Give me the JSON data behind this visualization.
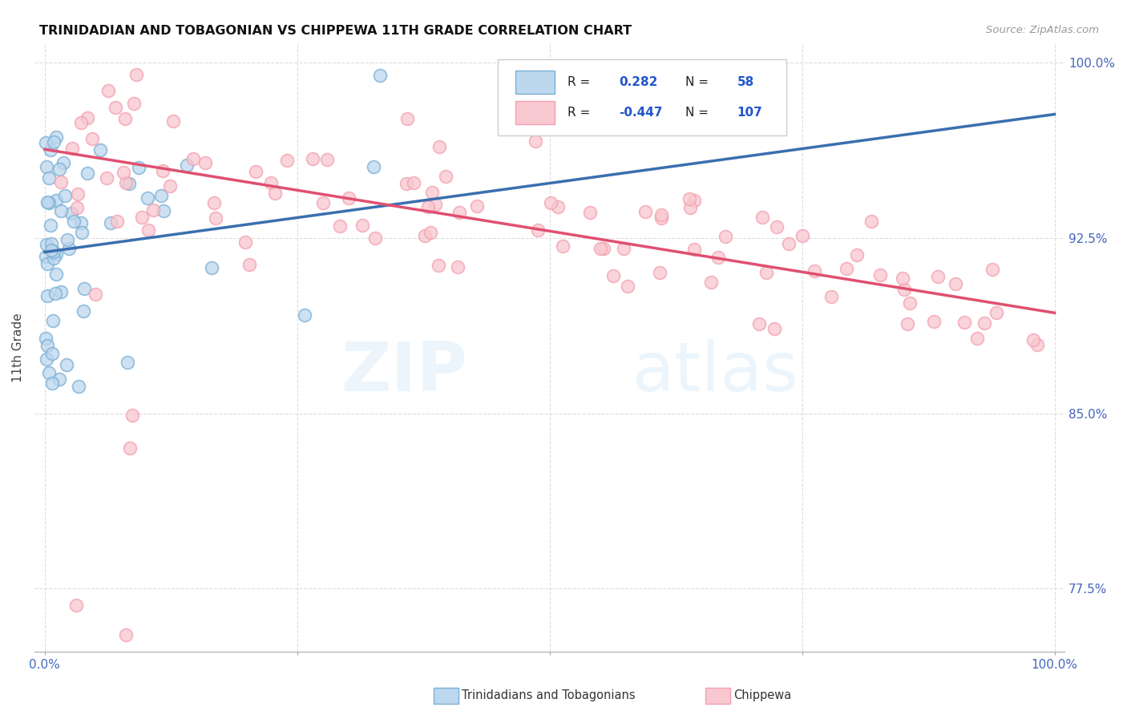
{
  "title": "TRINIDADIAN AND TOBAGONIAN VS CHIPPEWA 11TH GRADE CORRELATION CHART",
  "source": "Source: ZipAtlas.com",
  "ylabel": "11th Grade",
  "y_ticks": [
    0.775,
    0.85,
    0.925,
    1.0
  ],
  "y_tick_labels": [
    "77.5%",
    "85.0%",
    "92.5%",
    "100.0%"
  ],
  "x_ticks": [
    0.0,
    0.25,
    0.5,
    0.75,
    1.0
  ],
  "x_tick_labels": [
    "0.0%",
    "",
    "",
    "",
    "100.0%"
  ],
  "legend_r1": "R =",
  "legend_v1": "0.282",
  "legend_n1": "N =",
  "legend_nv1": "58",
  "legend_r2": "R =",
  "legend_v2": "-0.447",
  "legend_n2": "N =",
  "legend_nv2": "107",
  "blue_color": "#7BAFD4",
  "pink_color": "#F4A0B0",
  "blue_fill": "#BDD7EE",
  "pink_fill": "#F8C8D0",
  "blue_line_color": "#3A6FB0",
  "pink_line_color": "#E05070",
  "watermark_zip": "ZIP",
  "watermark_atlas": "atlas",
  "ylim_low": 0.748,
  "ylim_high": 1.008,
  "xlim_low": -0.01,
  "xlim_high": 1.01,
  "blue_trend_x0": 0.0,
  "blue_trend_y0": 0.919,
  "blue_trend_x1": 1.0,
  "blue_trend_y1": 0.978,
  "pink_trend_x0": 0.0,
  "pink_trend_y0": 0.963,
  "pink_trend_x1": 1.0,
  "pink_trend_y1": 0.893
}
